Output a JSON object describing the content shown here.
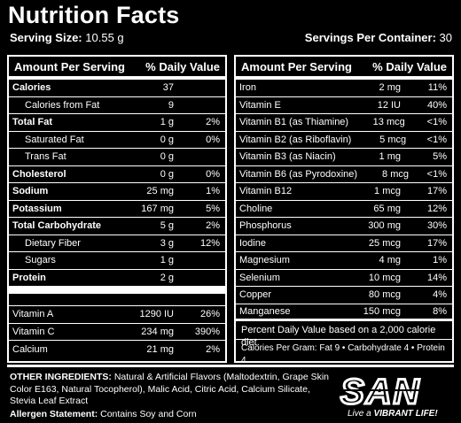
{
  "title": "Nutrition Facts",
  "serving_size_label": "Serving Size:",
  "serving_size_value": "10.55 g",
  "servings_per_container_label": "Servings Per Container:",
  "servings_per_container_value": "30",
  "left_panel": {
    "col_amount": "Amount Per Serving",
    "col_dv": "% Daily Value",
    "rows": [
      {
        "name": "Calories",
        "amount": "37",
        "dv": "",
        "bold": true,
        "indent": false
      },
      {
        "name": "Calories from Fat",
        "amount": "9",
        "dv": "",
        "bold": false,
        "indent": true
      },
      {
        "name": "Total Fat",
        "amount": "1 g",
        "dv": "2%",
        "bold": true,
        "indent": false
      },
      {
        "name": "Saturated Fat",
        "amount": "0 g",
        "dv": "0%",
        "bold": false,
        "indent": true
      },
      {
        "name": "Trans Fat",
        "amount": "0 g",
        "dv": "",
        "bold": false,
        "indent": true
      },
      {
        "name": "Cholesterol",
        "amount": "0 g",
        "dv": "0%",
        "bold": true,
        "indent": false
      },
      {
        "name": "Sodium",
        "amount": "25 mg",
        "dv": "1%",
        "bold": true,
        "indent": false
      },
      {
        "name": "Potassium",
        "amount": "167 mg",
        "dv": "5%",
        "bold": true,
        "indent": false
      },
      {
        "name": "Total Carbohydrate",
        "amount": "5 g",
        "dv": "2%",
        "bold": true,
        "indent": false
      },
      {
        "name": "Dietary Fiber",
        "amount": "3 g",
        "dv": "12%",
        "bold": false,
        "indent": true
      },
      {
        "name": "Sugars",
        "amount": "1 g",
        "dv": "",
        "bold": false,
        "indent": true
      },
      {
        "name": "Protein",
        "amount": "2 g",
        "dv": "",
        "bold": true,
        "indent": false
      }
    ],
    "vitamins": [
      {
        "name": "Vitamin A",
        "amount": "1290 IU",
        "dv": "26%"
      },
      {
        "name": "Vitamin C",
        "amount": "234 mg",
        "dv": "390%"
      },
      {
        "name": "Calcium",
        "amount": "21 mg",
        "dv": "2%"
      }
    ]
  },
  "right_panel": {
    "col_amount": "Amount Per Serving",
    "col_dv": "% Daily Value",
    "rows": [
      {
        "name": "Iron",
        "amount": "2 mg",
        "dv": "11%"
      },
      {
        "name": "Vitamin E",
        "amount": "12 IU",
        "dv": "40%"
      },
      {
        "name": "Vitamin B1 (as Thiamine)",
        "amount": "13 mcg",
        "dv": "<1%"
      },
      {
        "name": "Vitamin B2 (as Riboflavin)",
        "amount": "5 mcg",
        "dv": "<1%"
      },
      {
        "name": "Vitamin B3 (as Niacin)",
        "amount": "1 mg",
        "dv": "5%"
      },
      {
        "name": "Vitamin B6 (as Pyrodoxine)",
        "amount": "8 mcg",
        "dv": "<1%"
      },
      {
        "name": "Vitamin B12",
        "amount": "1 mcg",
        "dv": "17%"
      },
      {
        "name": "Choline",
        "amount": "65 mg",
        "dv": "12%"
      },
      {
        "name": "Phosphorus",
        "amount": "300 mg",
        "dv": "30%"
      },
      {
        "name": "Iodine",
        "amount": "25 mcg",
        "dv": "17%"
      },
      {
        "name": "Magnesium",
        "amount": "4 mg",
        "dv": "1%"
      },
      {
        "name": "Selenium",
        "amount": "10 mcg",
        "dv": "14%"
      },
      {
        "name": "Copper",
        "amount": "80 mcg",
        "dv": "4%"
      },
      {
        "name": "Manganese",
        "amount": "150 mcg",
        "dv": "8%"
      }
    ],
    "footnote": "Percent Daily Value based on a 2,000 calorie diet.",
    "calories_per_gram": "Calories Per Gram: Fat 9 • Carbohydrate 4 • Protein 4"
  },
  "ingredients_label": "OTHER INGREDIENTS:",
  "ingredients_text": "Natural & Artificial Flavors (Maltodextrin, Grape Skin Color E163, Natural Tocopherol), Malic Acid, Citric Acid, Calcium Silicate, Stevia Leaf Extract",
  "allergen_label": "Allergen Statement:",
  "allergen_text": "Contains Soy and Corn",
  "brand": {
    "logo_text": "SAN",
    "tagline_prefix": "Live a",
    "tagline_emphasis": "VIBRANT LIFE!"
  }
}
